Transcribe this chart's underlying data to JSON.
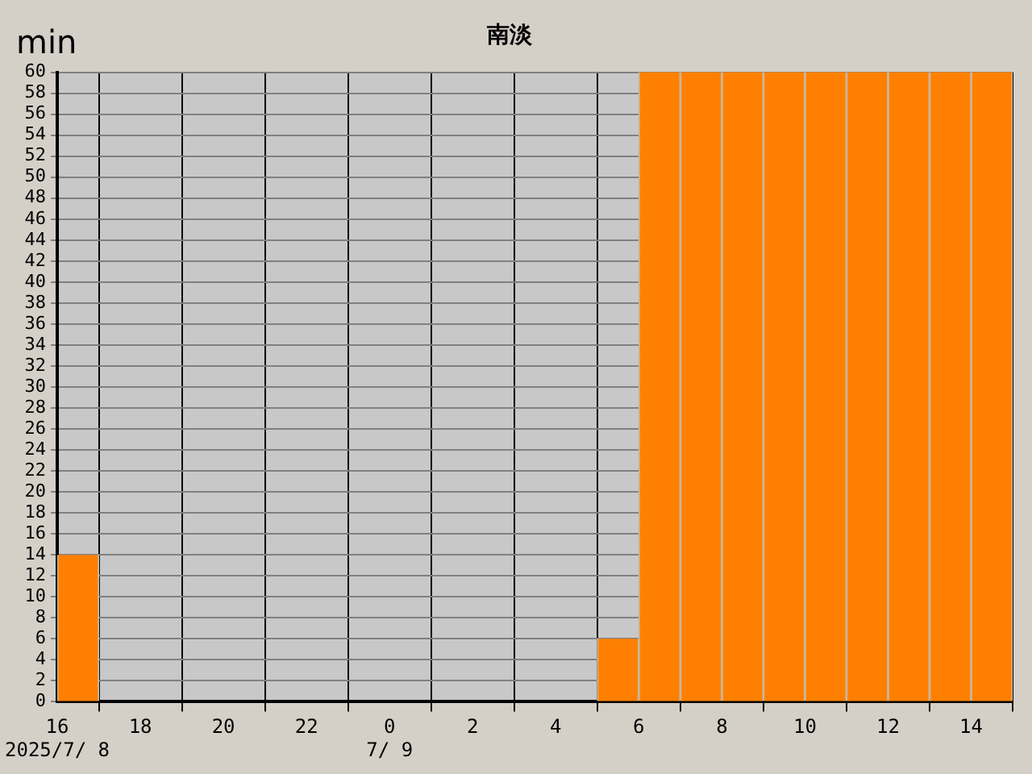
{
  "chart_data": {
    "type": "bar",
    "title": "南淡",
    "ylabel": "min",
    "x": [
      "2025-07-08T16:30",
      "2025-07-08T17:30",
      "2025-07-08T18:30",
      "2025-07-08T19:30",
      "2025-07-08T20:30",
      "2025-07-08T21:30",
      "2025-07-08T22:30",
      "2025-07-08T23:30",
      "2025-07-09T00:30",
      "2025-07-09T01:30",
      "2025-07-09T02:30",
      "2025-07-09T03:30",
      "2025-07-09T04:30",
      "2025-07-09T05:30",
      "2025-07-09T06:30",
      "2025-07-09T07:30",
      "2025-07-09T08:30",
      "2025-07-09T09:30",
      "2025-07-09T10:30",
      "2025-07-09T11:30",
      "2025-07-09T12:30",
      "2025-07-09T13:30",
      "2025-07-09T14:30"
    ],
    "values": [
      14,
      0,
      0,
      0,
      0,
      0,
      0,
      0,
      0,
      0,
      0,
      0,
      0,
      6,
      60,
      60,
      60,
      60,
      60,
      60,
      60,
      60,
      60
    ],
    "color": "#ff8000",
    "xlim": [
      "2025-07-08T16:00",
      "2025-07-09T15:00"
    ],
    "xticks": [
      {
        "value": "2025-07-08T16:00",
        "label": "16\n2025/7/ 8"
      },
      {
        "value": "2025-07-08T18:00",
        "label": "18"
      },
      {
        "value": "2025-07-08T20:00",
        "label": "20"
      },
      {
        "value": "2025-07-08T22:00",
        "label": "22"
      },
      {
        "value": "2025-07-09T00:00",
        "label": "0\n7/ 9"
      },
      {
        "value": "2025-07-09T02:00",
        "label": "2"
      },
      {
        "value": "2025-07-09T04:00",
        "label": "4"
      },
      {
        "value": "2025-07-09T06:00",
        "label": "6"
      },
      {
        "value": "2025-07-09T08:00",
        "label": "8"
      },
      {
        "value": "2025-07-09T10:00",
        "label": "10"
      },
      {
        "value": "2025-07-09T12:00",
        "label": "12"
      },
      {
        "value": "2025-07-09T14:00",
        "label": "14"
      }
    ],
    "ylim": [
      0,
      60
    ],
    "yticks": [
      0,
      2,
      4,
      6,
      8,
      10,
      12,
      14,
      16,
      18,
      20,
      22,
      24,
      26,
      28,
      30,
      32,
      34,
      36,
      38,
      40,
      42,
      44,
      46,
      48,
      50,
      52,
      54,
      56,
      58,
      60
    ],
    "grid": true,
    "legend": false
  }
}
